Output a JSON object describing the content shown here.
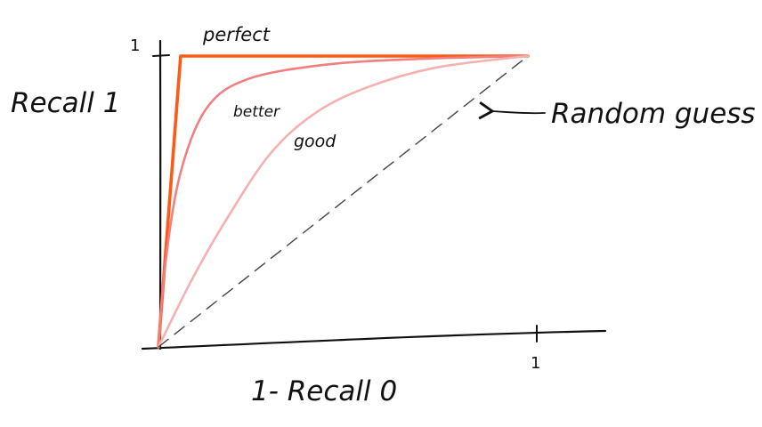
{
  "chart_data": {
    "type": "line",
    "title": "",
    "xlabel": "1- Recall 0",
    "ylabel": "Recall 1",
    "xlim": [
      0,
      1
    ],
    "ylim": [
      0,
      1
    ],
    "x_tick_labels": [
      "1"
    ],
    "y_tick_labels": [
      "1"
    ],
    "grid": false,
    "series": [
      {
        "name": "perfect",
        "color": "#ff5a14",
        "points": [
          [
            0,
            0
          ],
          [
            0.06,
            1.0
          ],
          [
            0.5,
            1.0
          ],
          [
            0.86,
            1.0
          ],
          [
            1,
            1
          ]
        ]
      },
      {
        "name": "better",
        "color": "#f08080",
        "points": [
          [
            0,
            0
          ],
          [
            0.02,
            0.3
          ],
          [
            0.06,
            0.6
          ],
          [
            0.13,
            0.82
          ],
          [
            0.24,
            0.92
          ],
          [
            0.45,
            0.97
          ],
          [
            0.7,
            0.99
          ],
          [
            1,
            1
          ]
        ]
      },
      {
        "name": "good",
        "color": "#f6b0b0",
        "points": [
          [
            0,
            0
          ],
          [
            0.09,
            0.23
          ],
          [
            0.18,
            0.43
          ],
          [
            0.3,
            0.66
          ],
          [
            0.42,
            0.8
          ],
          [
            0.56,
            0.89
          ],
          [
            0.75,
            0.96
          ],
          [
            1,
            1
          ]
        ]
      },
      {
        "name": "Random guess",
        "color": "#444444",
        "dashed": true,
        "points": [
          [
            0,
            0
          ],
          [
            1,
            1
          ]
        ]
      }
    ],
    "annotations": [
      "perfect",
      "better",
      "good",
      "Random guess"
    ]
  }
}
